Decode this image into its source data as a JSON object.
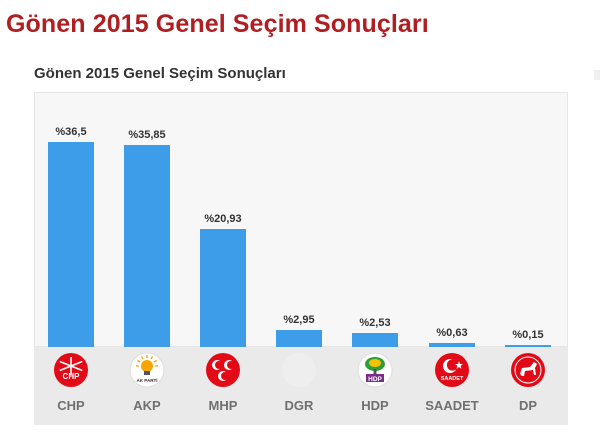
{
  "page": {
    "title": "Gönen 2015 Genel Seçim Sonuçları"
  },
  "chart_data": {
    "type": "bar",
    "title": "Gönen 2015 Genel Seçim Sonuçları",
    "categories": [
      "CHP",
      "AKP",
      "MHP",
      "DGR",
      "HDP",
      "SAADET",
      "DP"
    ],
    "values": [
      36.5,
      35.85,
      20.93,
      2.95,
      2.53,
      0.63,
      0.15
    ],
    "value_labels": [
      "%36,5",
      "%35,85",
      "%20,93",
      "%2,95",
      "%2,53",
      "%0,63",
      "%0,15"
    ],
    "xlabel": "",
    "ylabel": "",
    "ylim": [
      0,
      40
    ],
    "grid": false,
    "legend": "none",
    "bar_color": "#3d9de8",
    "logos": [
      {
        "party": "CHP",
        "icon": "chp-six-arrows-icon",
        "text": "CHP",
        "color": "#e30a17"
      },
      {
        "party": "AKP",
        "icon": "akp-lightbulb-icon",
        "text": "AK PARTİ",
        "color": "#f7a600"
      },
      {
        "party": "MHP",
        "icon": "mhp-three-crescents-icon",
        "text": "",
        "color": "#e30a17"
      },
      {
        "party": "DGR",
        "icon": "dgr-placeholder-icon",
        "text": "",
        "color": "#eeeeee"
      },
      {
        "party": "HDP",
        "icon": "hdp-tree-icon",
        "text": "HDP",
        "color": "#7b2b8a"
      },
      {
        "party": "SAADET",
        "icon": "saadet-crescent-star-icon",
        "text": "SAADET",
        "color": "#e30a17"
      },
      {
        "party": "DP",
        "icon": "dp-horse-icon",
        "text": "",
        "color": "#e30a17"
      }
    ]
  }
}
